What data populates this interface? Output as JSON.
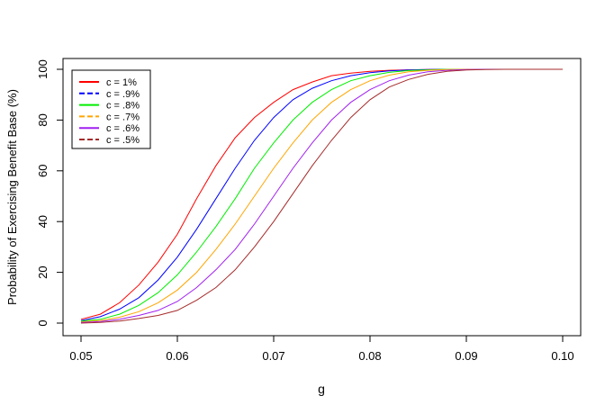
{
  "chart_data": {
    "type": "line",
    "title": "",
    "xlabel": "g",
    "ylabel": "Probability of Exercising Benefit Base (%)",
    "xlim": [
      0.05,
      0.1
    ],
    "ylim": [
      0,
      100
    ],
    "x_ticks": [
      0.05,
      0.06,
      0.07,
      0.08,
      0.09,
      0.1
    ],
    "x_tick_labels": [
      "0.05",
      "0.06",
      "0.07",
      "0.08",
      "0.09",
      "0.10"
    ],
    "y_ticks": [
      0,
      20,
      40,
      60,
      80,
      100
    ],
    "y_tick_labels": [
      "0",
      "20",
      "40",
      "60",
      "80",
      "100"
    ],
    "grid": false,
    "legend_position": "top-left",
    "x": [
      0.05,
      0.052,
      0.054,
      0.056,
      0.058,
      0.06,
      0.062,
      0.064,
      0.066,
      0.068,
      0.07,
      0.072,
      0.074,
      0.076,
      0.078,
      0.08,
      0.082,
      0.084,
      0.086,
      0.088,
      0.09,
      0.092,
      0.094,
      0.096,
      0.098,
      0.1
    ],
    "series": [
      {
        "name": "c = 1%",
        "color": "#ff0000",
        "legend_style": "solid",
        "values": [
          1.5,
          3.5,
          8,
          15,
          24,
          35,
          49,
          62,
          73,
          81,
          87,
          92,
          95,
          97.5,
          98.5,
          99.2,
          99.6,
          99.8,
          99.9,
          100,
          100,
          100,
          100,
          100,
          100,
          100
        ]
      },
      {
        "name": "c = .9%",
        "color": "#0000ff",
        "legend_style": "dashed",
        "values": [
          1,
          2.5,
          5.5,
          10,
          17,
          26,
          37,
          49,
          61,
          72,
          81,
          88,
          92.5,
          95.5,
          97.5,
          98.7,
          99.4,
          99.7,
          99.9,
          100,
          100,
          100,
          100,
          100,
          100,
          100
        ]
      },
      {
        "name": "c = .8%",
        "color": "#00ee00",
        "legend_style": "solid",
        "values": [
          0.8,
          1.5,
          3.5,
          7,
          12,
          19,
          28,
          38,
          49,
          61,
          71,
          80,
          87,
          92,
          95.5,
          97.5,
          98.8,
          99.5,
          99.8,
          100,
          100,
          100,
          100,
          100,
          100,
          100
        ]
      },
      {
        "name": "c = .7%",
        "color": "#ffa500",
        "legend_style": "dashed",
        "values": [
          0.5,
          1,
          2.3,
          4.5,
          8,
          13,
          20,
          29,
          39,
          50,
          61,
          71,
          80,
          87,
          92,
          95.5,
          97.7,
          99,
          99.6,
          99.9,
          100,
          100,
          100,
          100,
          100,
          100
        ]
      },
      {
        "name": "c = .6%",
        "color": "#a020f0",
        "legend_style": "solid",
        "values": [
          0.3,
          0.6,
          1.5,
          3,
          5,
          8.5,
          14,
          21,
          29,
          39,
          50,
          61,
          71,
          80,
          87,
          92,
          95.5,
          97.7,
          99,
          99.6,
          99.9,
          100,
          100,
          100,
          100,
          100
        ]
      },
      {
        "name": "c = .5%",
        "color": "#a52a2a",
        "legend_style": "dashed",
        "values": [
          0,
          0.3,
          0.8,
          1.8,
          3,
          5,
          9,
          14,
          21,
          30,
          40,
          51,
          62,
          72,
          81,
          88,
          93,
          96,
          98,
          99.2,
          99.7,
          99.9,
          100,
          100,
          100,
          100
        ]
      }
    ]
  }
}
